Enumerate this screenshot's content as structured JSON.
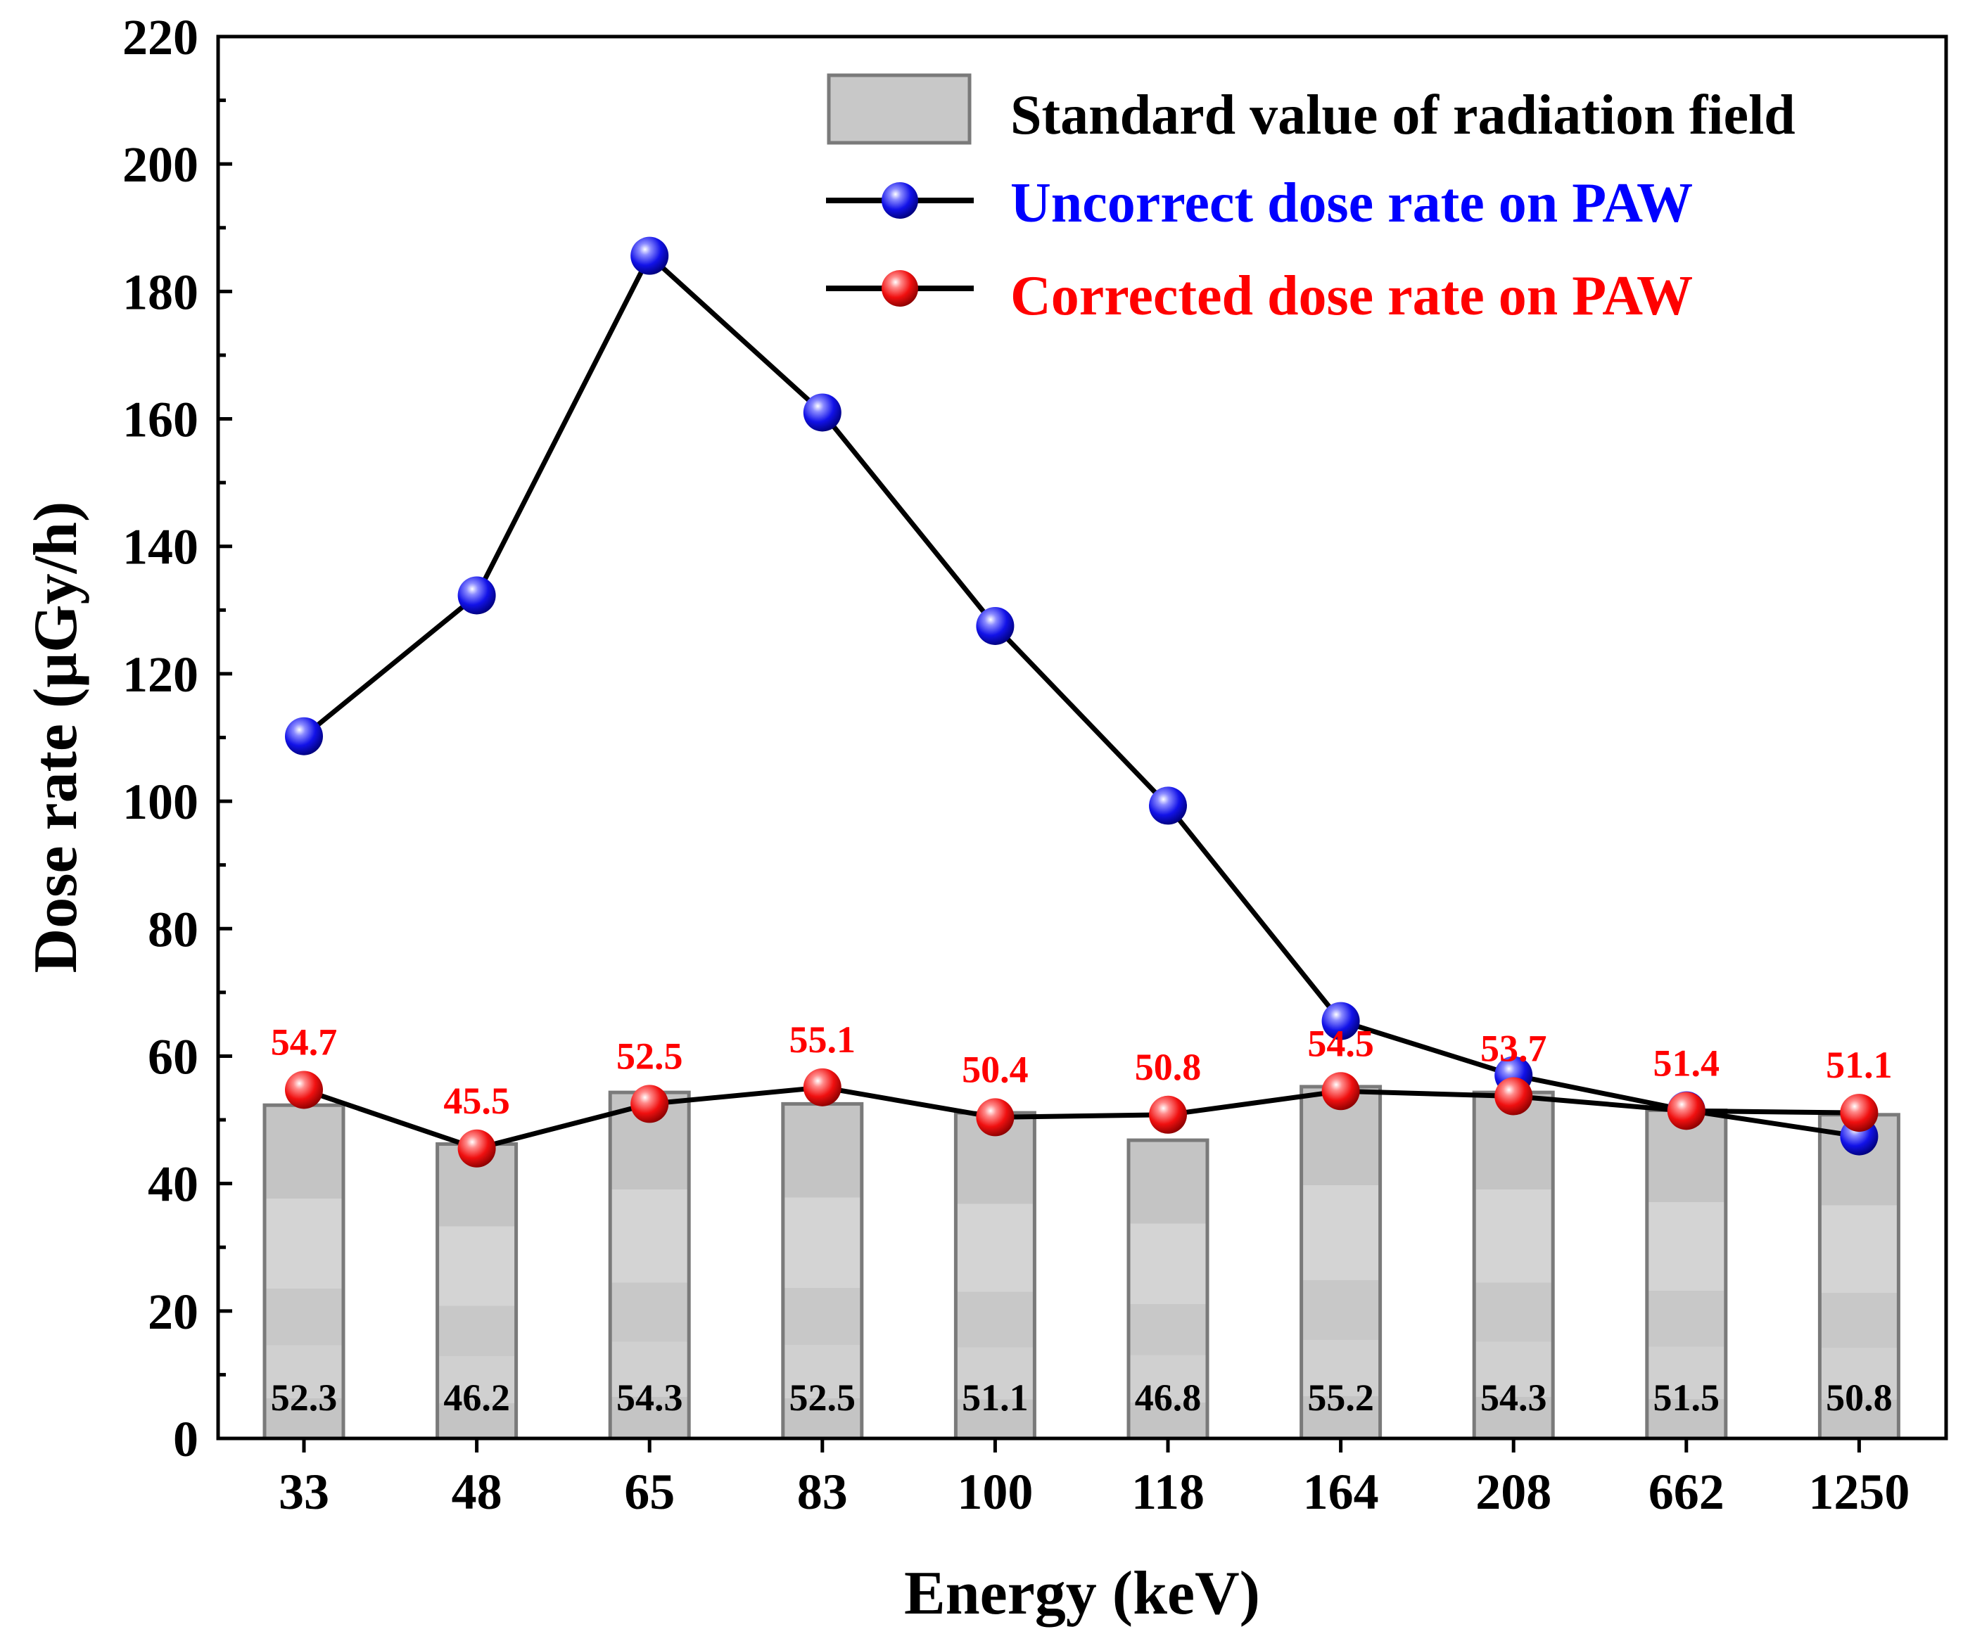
{
  "chart_data": {
    "type": "bar+line",
    "xlabel": "Energy (keV)",
    "ylabel": "Dose rate (μGy/h)",
    "ylim": [
      0,
      220
    ],
    "yticks": [
      0,
      20,
      40,
      60,
      80,
      100,
      120,
      140,
      160,
      180,
      200,
      220
    ],
    "categories": [
      "33",
      "48",
      "65",
      "83",
      "100",
      "118",
      "164",
      "208",
      "662",
      "1250"
    ],
    "bars": {
      "name": "Standard value of radiation field",
      "values": [
        52.3,
        46.2,
        54.3,
        52.5,
        51.1,
        46.8,
        55.2,
        54.3,
        51.5,
        50.8
      ],
      "labels": [
        "52.3",
        "46.2",
        "54.3",
        "52.5",
        "51.1",
        "46.8",
        "55.2",
        "54.3",
        "51.5",
        "50.8"
      ],
      "color": "#c8c8c8",
      "edge_color": "#7a7a7a"
    },
    "series": [
      {
        "name": "Uncorrect dose rate on PAW",
        "values": [
          110.2,
          132.3,
          185.6,
          161.0,
          127.5,
          99.3,
          65.5,
          57.0,
          51.5,
          47.4
        ],
        "color": "#0000ff",
        "line_color": "#000000"
      },
      {
        "name": "Corrected dose rate on PAW",
        "values": [
          54.7,
          45.5,
          52.5,
          55.1,
          50.4,
          50.8,
          54.5,
          53.7,
          51.4,
          51.1
        ],
        "labels": [
          "54.7",
          "45.5",
          "52.5",
          "55.1",
          "50.4",
          "50.8",
          "54.5",
          "53.7",
          "51.4",
          "51.1"
        ],
        "color": "#ff0000",
        "line_color": "#000000"
      }
    ],
    "legend": {
      "position": "top-right",
      "entries": [
        "Standard value of radiation field",
        "Uncorrect dose rate on PAW",
        "Corrected dose rate on PAW"
      ]
    }
  }
}
